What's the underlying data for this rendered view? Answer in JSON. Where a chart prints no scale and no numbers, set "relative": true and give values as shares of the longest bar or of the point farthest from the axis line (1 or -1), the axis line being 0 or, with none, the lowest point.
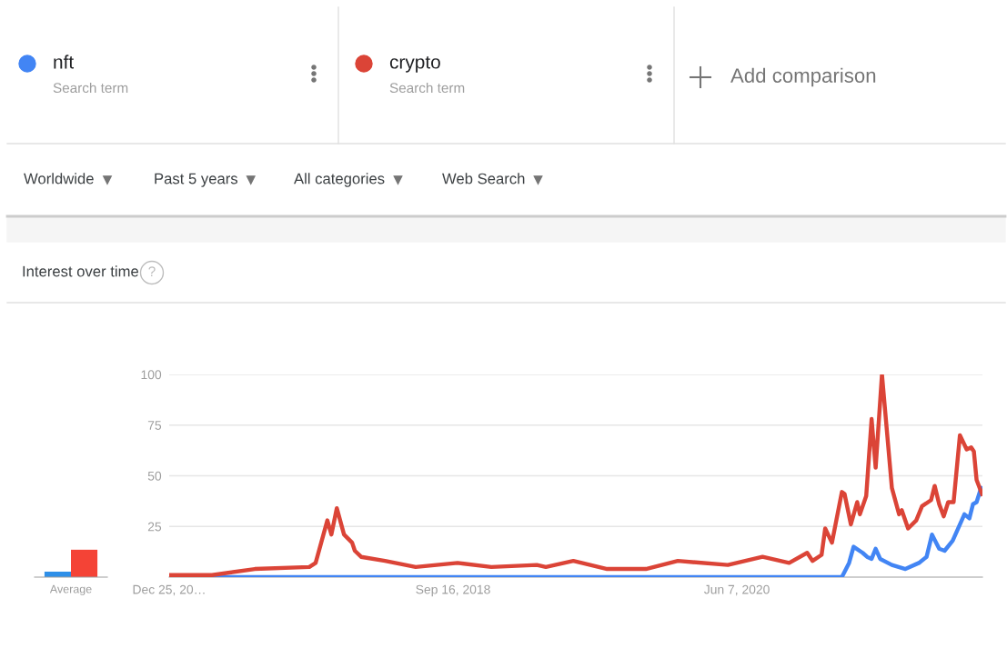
{
  "chart_data": [
    {
      "type": "line",
      "title": "Interest over time",
      "annotations": [
        "Search term",
        "Search term",
        "Add comparison",
        "Worldwide",
        "Past 5 years",
        "All categories",
        "Web Search",
        "?"
      ],
      "series": [
        {
          "name": "nft",
          "color": "#4285f4",
          "x": [
            "2016-12-25",
            "2021-01-06",
            "2021-01-26",
            "2021-02-11",
            "2021-02-21",
            "2021-03-13",
            "2021-03-23",
            "2021-04-02",
            "2021-04-11",
            "2021-04-21",
            "2021-05-17",
            "2021-06-16",
            "2021-07-16",
            "2021-08-02",
            "2021-08-14",
            "2021-08-30",
            "2021-09-11",
            "2021-09-29",
            "2021-10-25",
            "2021-11-05",
            "2021-11-13",
            "2021-11-21",
            "2021-12-01"
          ],
          "values": [
            0,
            0,
            0,
            7,
            15,
            12,
            10,
            9,
            14,
            9,
            6,
            4,
            7,
            10,
            21,
            14,
            13,
            18,
            31,
            29,
            36,
            37,
            44
          ]
        },
        {
          "name": "crypto",
          "color": "#db4437",
          "x": [
            "2016-12-25",
            "2017-03-30",
            "2017-07-03",
            "2017-11-01",
            "2017-11-15",
            "2017-12-11",
            "2017-12-20",
            "2018-01-01",
            "2018-01-17",
            "2018-02-04",
            "2018-02-10",
            "2018-02-24",
            "2018-04-18",
            "2018-06-25",
            "2018-09-26",
            "2018-12-10",
            "2019-03-21",
            "2019-04-10",
            "2019-06-10",
            "2019-08-24",
            "2019-11-18",
            "2020-01-28",
            "2020-05-18",
            "2020-08-03",
            "2020-10-01",
            "2020-11-10",
            "2020-11-22",
            "2020-12-12",
            "2020-12-20",
            "2021-01-04",
            "2021-01-26",
            "2021-02-01",
            "2021-02-15",
            "2021-03-01",
            "2021-03-07",
            "2021-03-21",
            "2021-04-02",
            "2021-04-11",
            "2021-04-25",
            "2021-05-17",
            "2021-06-02",
            "2021-06-08",
            "2021-06-22",
            "2021-07-10",
            "2021-07-23",
            "2021-08-12",
            "2021-08-20",
            "2021-08-30",
            "2021-09-09",
            "2021-09-19",
            "2021-10-01",
            "2021-10-15",
            "2021-10-30",
            "2021-11-09",
            "2021-11-15",
            "2021-11-21",
            "2021-12-03"
          ],
          "values": [
            1,
            1,
            4,
            5,
            7,
            28,
            21,
            34,
            21,
            17,
            13,
            10,
            8,
            5,
            7,
            5,
            6,
            5,
            8,
            4,
            4,
            8,
            6,
            10,
            7,
            12,
            8,
            11,
            24,
            17,
            42,
            41,
            26,
            37,
            31,
            40,
            78,
            54,
            100,
            44,
            31,
            33,
            24,
            28,
            35,
            38,
            45,
            36,
            30,
            37,
            37,
            70,
            63,
            64,
            62,
            48,
            41
          ]
        }
      ],
      "xlim": [
        "2016-12-25",
        "2021-12-04"
      ],
      "xticks": [
        {
          "value": "2016-12-25",
          "label": "Dec 25, 20…"
        },
        {
          "value": "2018-09-16",
          "label": "Sep 16, 2018"
        },
        {
          "value": "2020-06-07",
          "label": "Jun 7, 2020"
        }
      ],
      "ylim": [
        0,
        100
      ],
      "yticks": [
        25,
        50,
        75,
        100
      ],
      "grid": "y",
      "legend": "top left",
      "line_style": "solid",
      "marker": "none"
    },
    {
      "type": "bar",
      "relative": true,
      "categories": [
        "Average"
      ],
      "series": [
        {
          "color": "#2e8fe8",
          "values": [
            0.2
          ]
        },
        {
          "color": "#f44336",
          "values": [
            1
          ]
        }
      ]
    }
  ]
}
